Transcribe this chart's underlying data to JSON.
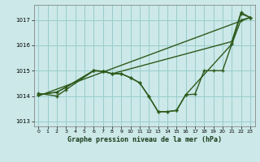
{
  "title": "Graphe pression niveau de la mer (hPa)",
  "background_color": "#cce8e8",
  "grid_color": "#99cccc",
  "line_color": "#2d5a1b",
  "xlim": [
    -0.5,
    23.5
  ],
  "ylim": [
    1012.8,
    1017.6
  ],
  "yticks": [
    1013,
    1014,
    1015,
    1016,
    1017
  ],
  "xticks": [
    0,
    1,
    2,
    3,
    4,
    5,
    6,
    7,
    8,
    9,
    10,
    11,
    12,
    13,
    14,
    15,
    16,
    17,
    18,
    19,
    20,
    21,
    22,
    23
  ],
  "line1_x": [
    0,
    23
  ],
  "line1_y": [
    1014.0,
    1017.1
  ],
  "line2_x": [
    0,
    2,
    3,
    6,
    7,
    8,
    9,
    10,
    11,
    12,
    13,
    14,
    15,
    16,
    17,
    18,
    19,
    20,
    21,
    22,
    23
  ],
  "line2_y": [
    1014.1,
    1014.0,
    1014.25,
    1015.0,
    1014.98,
    1014.88,
    1014.88,
    1014.72,
    1014.52,
    1013.98,
    1013.38,
    1013.38,
    1013.43,
    1014.05,
    1014.07,
    1015.0,
    1015.0,
    1015.0,
    1016.05,
    1017.25,
    1017.1
  ],
  "line3_x": [
    0,
    2,
    3,
    6,
    7,
    8,
    9,
    10,
    11,
    12,
    13,
    14,
    15,
    16,
    21,
    22,
    23
  ],
  "line3_y": [
    1014.05,
    1014.15,
    1014.35,
    1015.0,
    1014.98,
    1014.88,
    1014.88,
    1014.72,
    1014.52,
    1013.98,
    1013.38,
    1013.38,
    1013.43,
    1014.05,
    1016.05,
    1017.0,
    1017.1
  ],
  "line4_x": [
    0,
    2,
    3,
    6,
    7,
    8,
    21,
    22,
    23
  ],
  "line4_y": [
    1014.05,
    1014.15,
    1014.35,
    1015.0,
    1014.98,
    1014.88,
    1016.15,
    1017.3,
    1017.1
  ]
}
